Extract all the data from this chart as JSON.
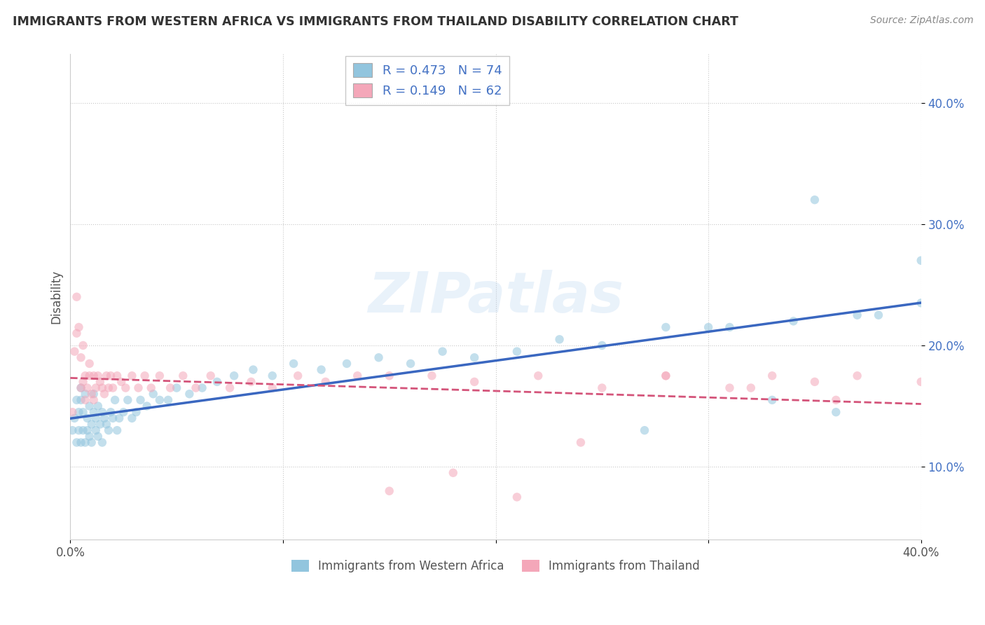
{
  "title": "IMMIGRANTS FROM WESTERN AFRICA VS IMMIGRANTS FROM THAILAND DISABILITY CORRELATION CHART",
  "source": "Source: ZipAtlas.com",
  "ylabel": "Disability",
  "xlim": [
    0.0,
    0.4
  ],
  "ylim": [
    0.04,
    0.44
  ],
  "xticks": [
    0.0,
    0.1,
    0.2,
    0.3,
    0.4
  ],
  "xtick_labels": [
    "0.0%",
    "",
    "",
    "",
    "40.0%"
  ],
  "yticks": [
    0.1,
    0.2,
    0.3,
    0.4
  ],
  "ytick_labels": [
    "10.0%",
    "20.0%",
    "30.0%",
    "40.0%"
  ],
  "series1_label": "Immigrants from Western Africa",
  "series2_label": "Immigrants from Thailand",
  "series1_color": "#92c5de",
  "series2_color": "#f4a7b9",
  "series1_line_color": "#3a67c0",
  "series2_line_color": "#d4547a",
  "R1": 0.473,
  "N1": 74,
  "R2": 0.149,
  "N2": 62,
  "legend_R_color": "#4472c4",
  "watermark": "ZIPatlas",
  "series1_x": [
    0.001,
    0.002,
    0.003,
    0.003,
    0.004,
    0.004,
    0.005,
    0.005,
    0.005,
    0.006,
    0.006,
    0.007,
    0.007,
    0.008,
    0.008,
    0.009,
    0.009,
    0.01,
    0.01,
    0.011,
    0.011,
    0.012,
    0.012,
    0.013,
    0.013,
    0.014,
    0.015,
    0.015,
    0.016,
    0.017,
    0.018,
    0.019,
    0.02,
    0.021,
    0.022,
    0.023,
    0.025,
    0.027,
    0.029,
    0.031,
    0.033,
    0.036,
    0.039,
    0.042,
    0.046,
    0.05,
    0.056,
    0.062,
    0.069,
    0.077,
    0.086,
    0.095,
    0.105,
    0.118,
    0.13,
    0.145,
    0.16,
    0.175,
    0.19,
    0.21,
    0.23,
    0.25,
    0.28,
    0.31,
    0.34,
    0.37,
    0.35,
    0.38,
    0.4,
    0.27,
    0.3,
    0.33,
    0.36,
    0.4
  ],
  "series1_y": [
    0.13,
    0.14,
    0.12,
    0.155,
    0.13,
    0.145,
    0.12,
    0.155,
    0.165,
    0.13,
    0.145,
    0.12,
    0.16,
    0.13,
    0.14,
    0.125,
    0.15,
    0.135,
    0.12,
    0.145,
    0.16,
    0.13,
    0.14,
    0.125,
    0.15,
    0.135,
    0.145,
    0.12,
    0.14,
    0.135,
    0.13,
    0.145,
    0.14,
    0.155,
    0.13,
    0.14,
    0.145,
    0.155,
    0.14,
    0.145,
    0.155,
    0.15,
    0.16,
    0.155,
    0.155,
    0.165,
    0.16,
    0.165,
    0.17,
    0.175,
    0.18,
    0.175,
    0.185,
    0.18,
    0.185,
    0.19,
    0.185,
    0.195,
    0.19,
    0.195,
    0.205,
    0.2,
    0.215,
    0.215,
    0.22,
    0.225,
    0.32,
    0.225,
    0.235,
    0.13,
    0.215,
    0.155,
    0.145,
    0.27
  ],
  "series2_x": [
    0.001,
    0.002,
    0.003,
    0.003,
    0.004,
    0.005,
    0.005,
    0.006,
    0.006,
    0.007,
    0.007,
    0.008,
    0.009,
    0.009,
    0.01,
    0.011,
    0.011,
    0.012,
    0.013,
    0.014,
    0.015,
    0.016,
    0.017,
    0.018,
    0.019,
    0.02,
    0.022,
    0.024,
    0.026,
    0.029,
    0.032,
    0.035,
    0.038,
    0.042,
    0.047,
    0.053,
    0.059,
    0.066,
    0.075,
    0.085,
    0.095,
    0.107,
    0.12,
    0.135,
    0.15,
    0.17,
    0.19,
    0.22,
    0.25,
    0.28,
    0.31,
    0.33,
    0.35,
    0.37,
    0.4,
    0.15,
    0.18,
    0.21,
    0.24,
    0.28,
    0.32,
    0.36
  ],
  "series2_y": [
    0.145,
    0.195,
    0.24,
    0.21,
    0.215,
    0.19,
    0.165,
    0.17,
    0.2,
    0.155,
    0.175,
    0.165,
    0.175,
    0.185,
    0.16,
    0.175,
    0.155,
    0.165,
    0.175,
    0.17,
    0.165,
    0.16,
    0.175,
    0.165,
    0.175,
    0.165,
    0.175,
    0.17,
    0.165,
    0.175,
    0.165,
    0.175,
    0.165,
    0.175,
    0.165,
    0.175,
    0.165,
    0.175,
    0.165,
    0.17,
    0.165,
    0.175,
    0.17,
    0.175,
    0.175,
    0.175,
    0.17,
    0.175,
    0.165,
    0.175,
    0.165,
    0.175,
    0.17,
    0.175,
    0.17,
    0.08,
    0.095,
    0.075,
    0.12,
    0.175,
    0.165,
    0.155
  ]
}
